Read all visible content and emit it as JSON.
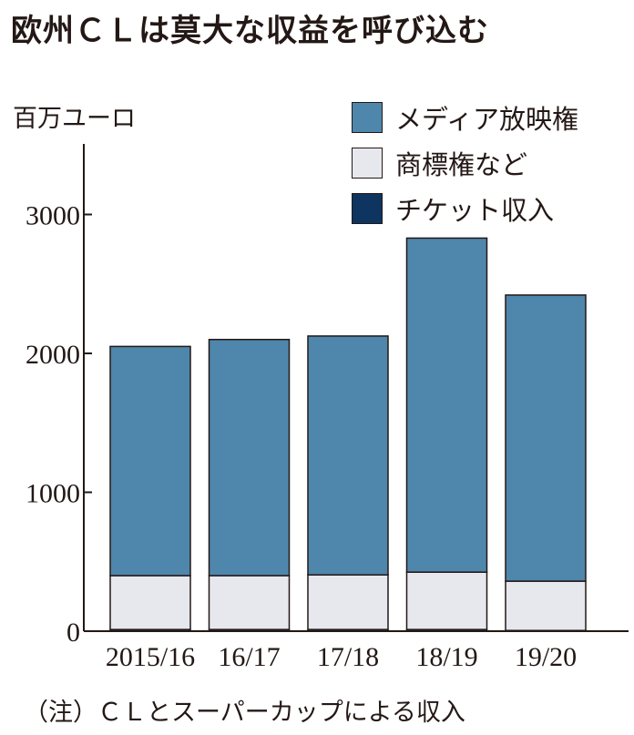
{
  "title": "欧州ＣＬは莫大な収益を呼び込む",
  "note": "（注）ＣＬとスーパーカップによる収入",
  "colors": {
    "media": "#4f86ac",
    "trademark": "#e7e7ee",
    "ticket": "#0e3460",
    "axis": "#231815"
  },
  "chart_data": {
    "type": "bar",
    "stacked": true,
    "title": "",
    "ylabel": "百万ユーロ",
    "xlabel": "",
    "categories": [
      "2015/16",
      "16/17",
      "17/18",
      "18/19",
      "19/20"
    ],
    "series": [
      {
        "name": "チケット収入",
        "color": "#0e3460",
        "values": [
          12,
          12,
          12,
          12,
          5
        ]
      },
      {
        "name": "商標権など",
        "color": "#e7e7ee",
        "values": [
          388,
          388,
          393,
          413,
          355
        ]
      },
      {
        "name": "メディア放映権",
        "color": "#4f86ac",
        "values": [
          1650,
          1700,
          1720,
          2405,
          2060
        ]
      }
    ],
    "legend_order": [
      "メディア放映権",
      "商標権など",
      "チケット収入"
    ],
    "legend_position": "top-right",
    "ylim": [
      0,
      3500
    ],
    "yticks": [
      "0",
      "1000",
      "2000",
      "3000"
    ],
    "grid": false
  }
}
